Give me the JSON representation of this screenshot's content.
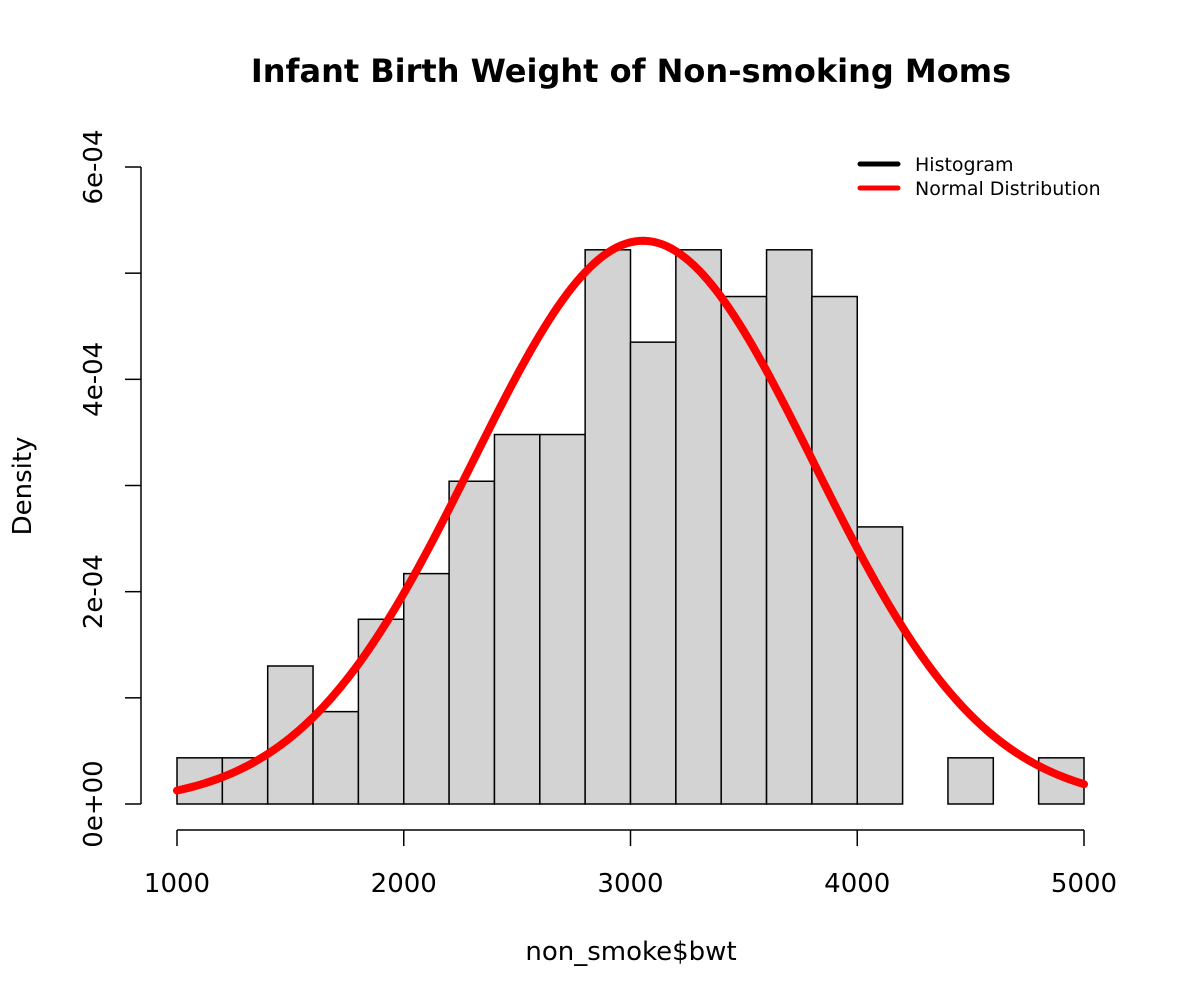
{
  "chart_data": {
    "type": "bar",
    "title": "Infant Birth Weight of Non-smoking Moms",
    "xlabel": "non_smoke$bwt",
    "ylabel": "Density",
    "xlim": [
      1000,
      5000
    ],
    "ylim": [
      0,
      0.0006
    ],
    "x_ticks": [
      1000,
      2000,
      3000,
      4000,
      5000
    ],
    "x_tick_labels": [
      "1000",
      "2000",
      "3000",
      "4000",
      "5000"
    ],
    "y_ticks": [
      0,
      0.0001,
      0.0002,
      0.0003,
      0.0004,
      0.0005,
      0.0006
    ],
    "y_tick_labels": [
      "0e+00",
      "",
      "2e-04",
      "",
      "4e-04",
      "",
      "6e-04"
    ],
    "bin_width": 200,
    "bins": [
      {
        "start": 1000,
        "end": 1200,
        "density": 4.35e-05
      },
      {
        "start": 1200,
        "end": 1400,
        "density": 4.35e-05
      },
      {
        "start": 1400,
        "end": 1600,
        "density": 0.00013
      },
      {
        "start": 1600,
        "end": 1800,
        "density": 8.7e-05
      },
      {
        "start": 1800,
        "end": 2000,
        "density": 0.000174
      },
      {
        "start": 2000,
        "end": 2200,
        "density": 0.000217
      },
      {
        "start": 2200,
        "end": 2400,
        "density": 0.000304
      },
      {
        "start": 2400,
        "end": 2600,
        "density": 0.000348
      },
      {
        "start": 2600,
        "end": 2800,
        "density": 0.000348
      },
      {
        "start": 2800,
        "end": 3000,
        "density": 0.000522
      },
      {
        "start": 3000,
        "end": 3200,
        "density": 0.000435
      },
      {
        "start": 3200,
        "end": 3400,
        "density": 0.000522
      },
      {
        "start": 3400,
        "end": 3600,
        "density": 0.000478
      },
      {
        "start": 3600,
        "end": 3800,
        "density": 0.000522
      },
      {
        "start": 3800,
        "end": 4000,
        "density": 0.000478
      },
      {
        "start": 4000,
        "end": 4200,
        "density": 0.000261
      },
      {
        "start": 4200,
        "end": 4400,
        "density": 0
      },
      {
        "start": 4400,
        "end": 4600,
        "density": 4.35e-05
      },
      {
        "start": 4600,
        "end": 4800,
        "density": 0
      },
      {
        "start": 4800,
        "end": 5000,
        "density": 4.35e-05
      }
    ],
    "normal_curve": {
      "mean": 3055,
      "sd": 752,
      "x_range": [
        1000,
        5000
      ]
    },
    "legend": {
      "position": "top-right",
      "items": [
        {
          "label": "Histogram",
          "color": "#000000"
        },
        {
          "label": "Normal Distribution",
          "color": "#ff0000"
        }
      ]
    },
    "colors": {
      "bar_fill": "#d3d3d3",
      "bar_stroke": "#000000",
      "curve": "#ff0000"
    }
  }
}
